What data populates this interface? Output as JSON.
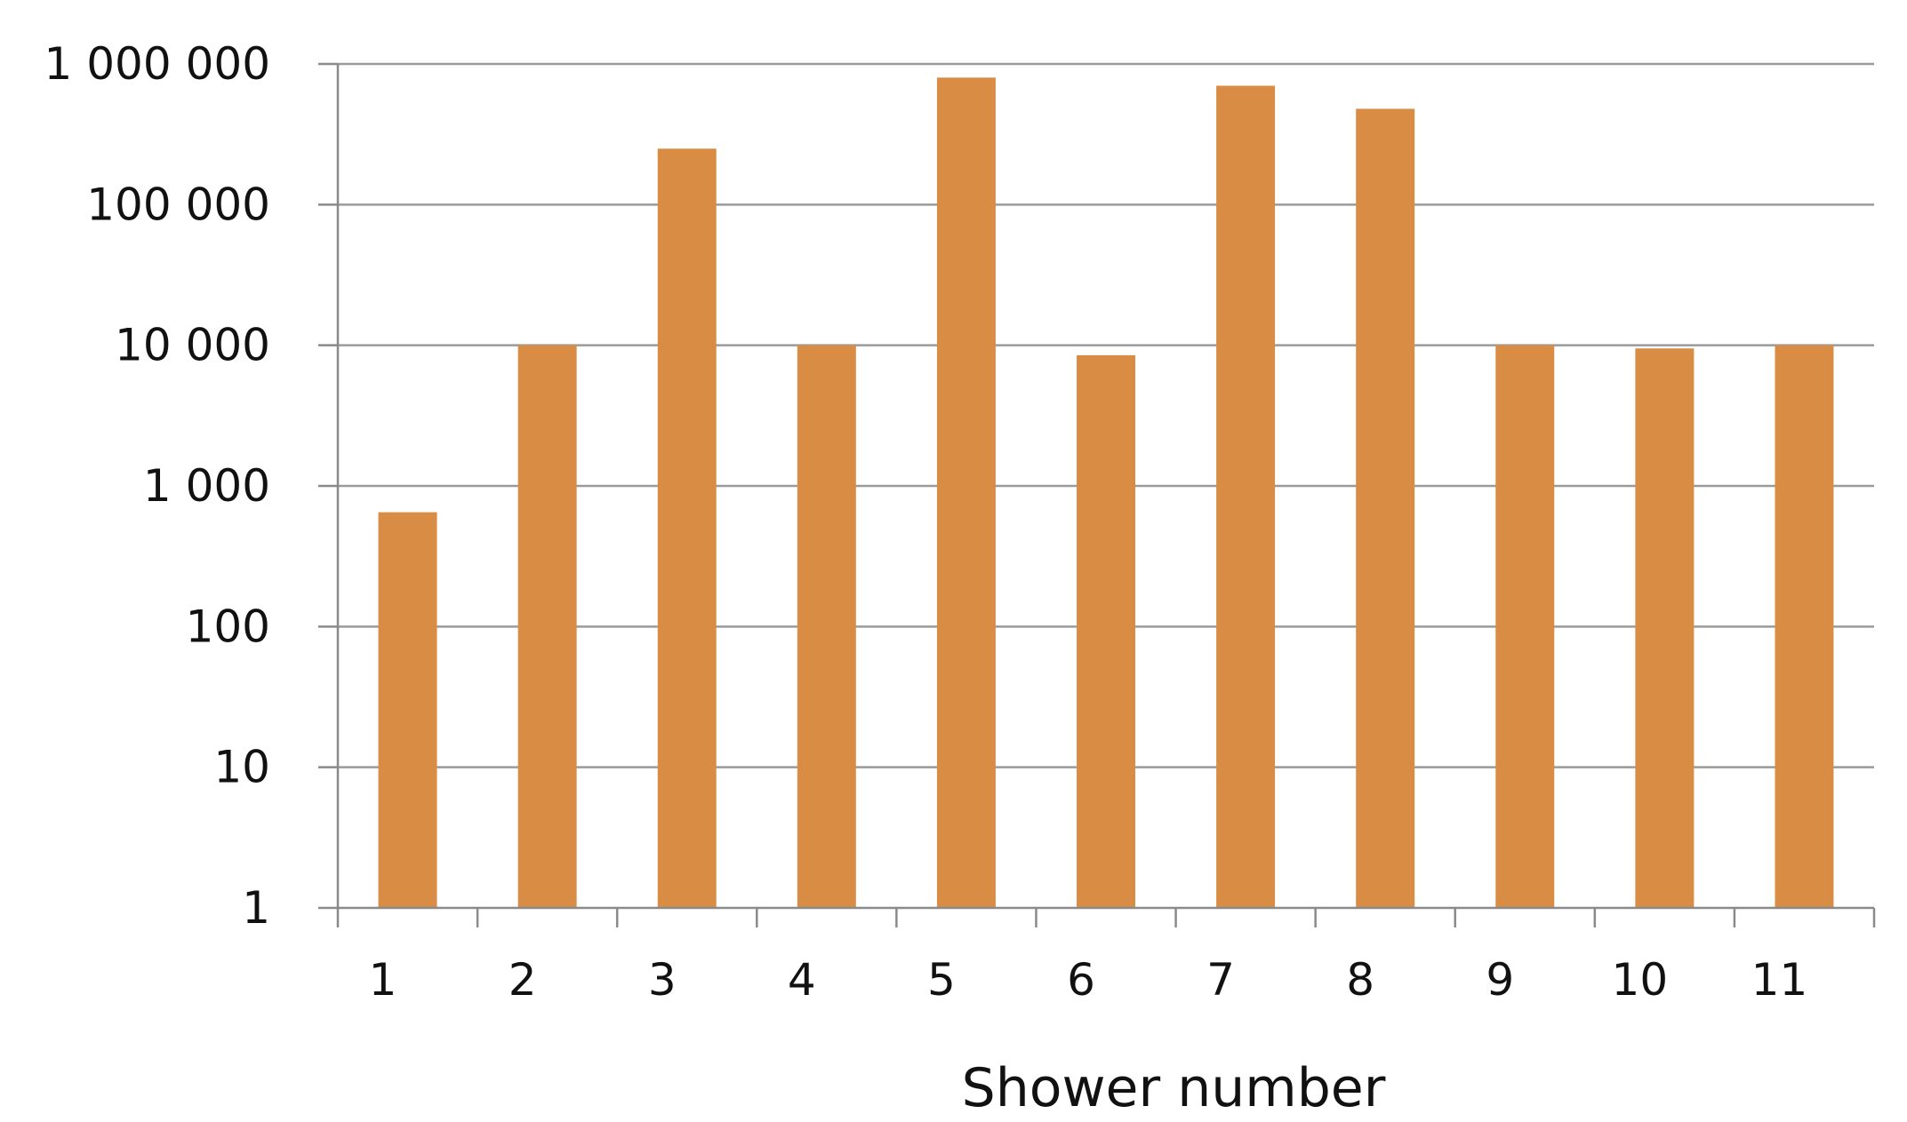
{
  "chart_data": {
    "type": "bar",
    "title": "",
    "xlabel": "Shower number",
    "ylabel": "",
    "y_scale": "log",
    "ylim": [
      1,
      1000000
    ],
    "y_ticks": [
      1,
      10,
      100,
      1000,
      10000,
      100000,
      1000000
    ],
    "y_tick_labels": [
      "1",
      "10",
      "100",
      "1 000",
      "10 000",
      "100 000",
      "1 000 000"
    ],
    "categories": [
      "1",
      "2",
      "3",
      "4",
      "5",
      "6",
      "7",
      "8",
      "9",
      "10",
      "11"
    ],
    "values": [
      650,
      10000,
      250000,
      10000,
      800000,
      8500,
      700000,
      480000,
      10000,
      9500,
      10000
    ],
    "grid": "horizontal",
    "legend": "none",
    "bar_color": "#D98D44",
    "grid_color": "#9A9A9A",
    "axis_color": "#8A8A8A",
    "background_color": "#FFFFFF"
  }
}
